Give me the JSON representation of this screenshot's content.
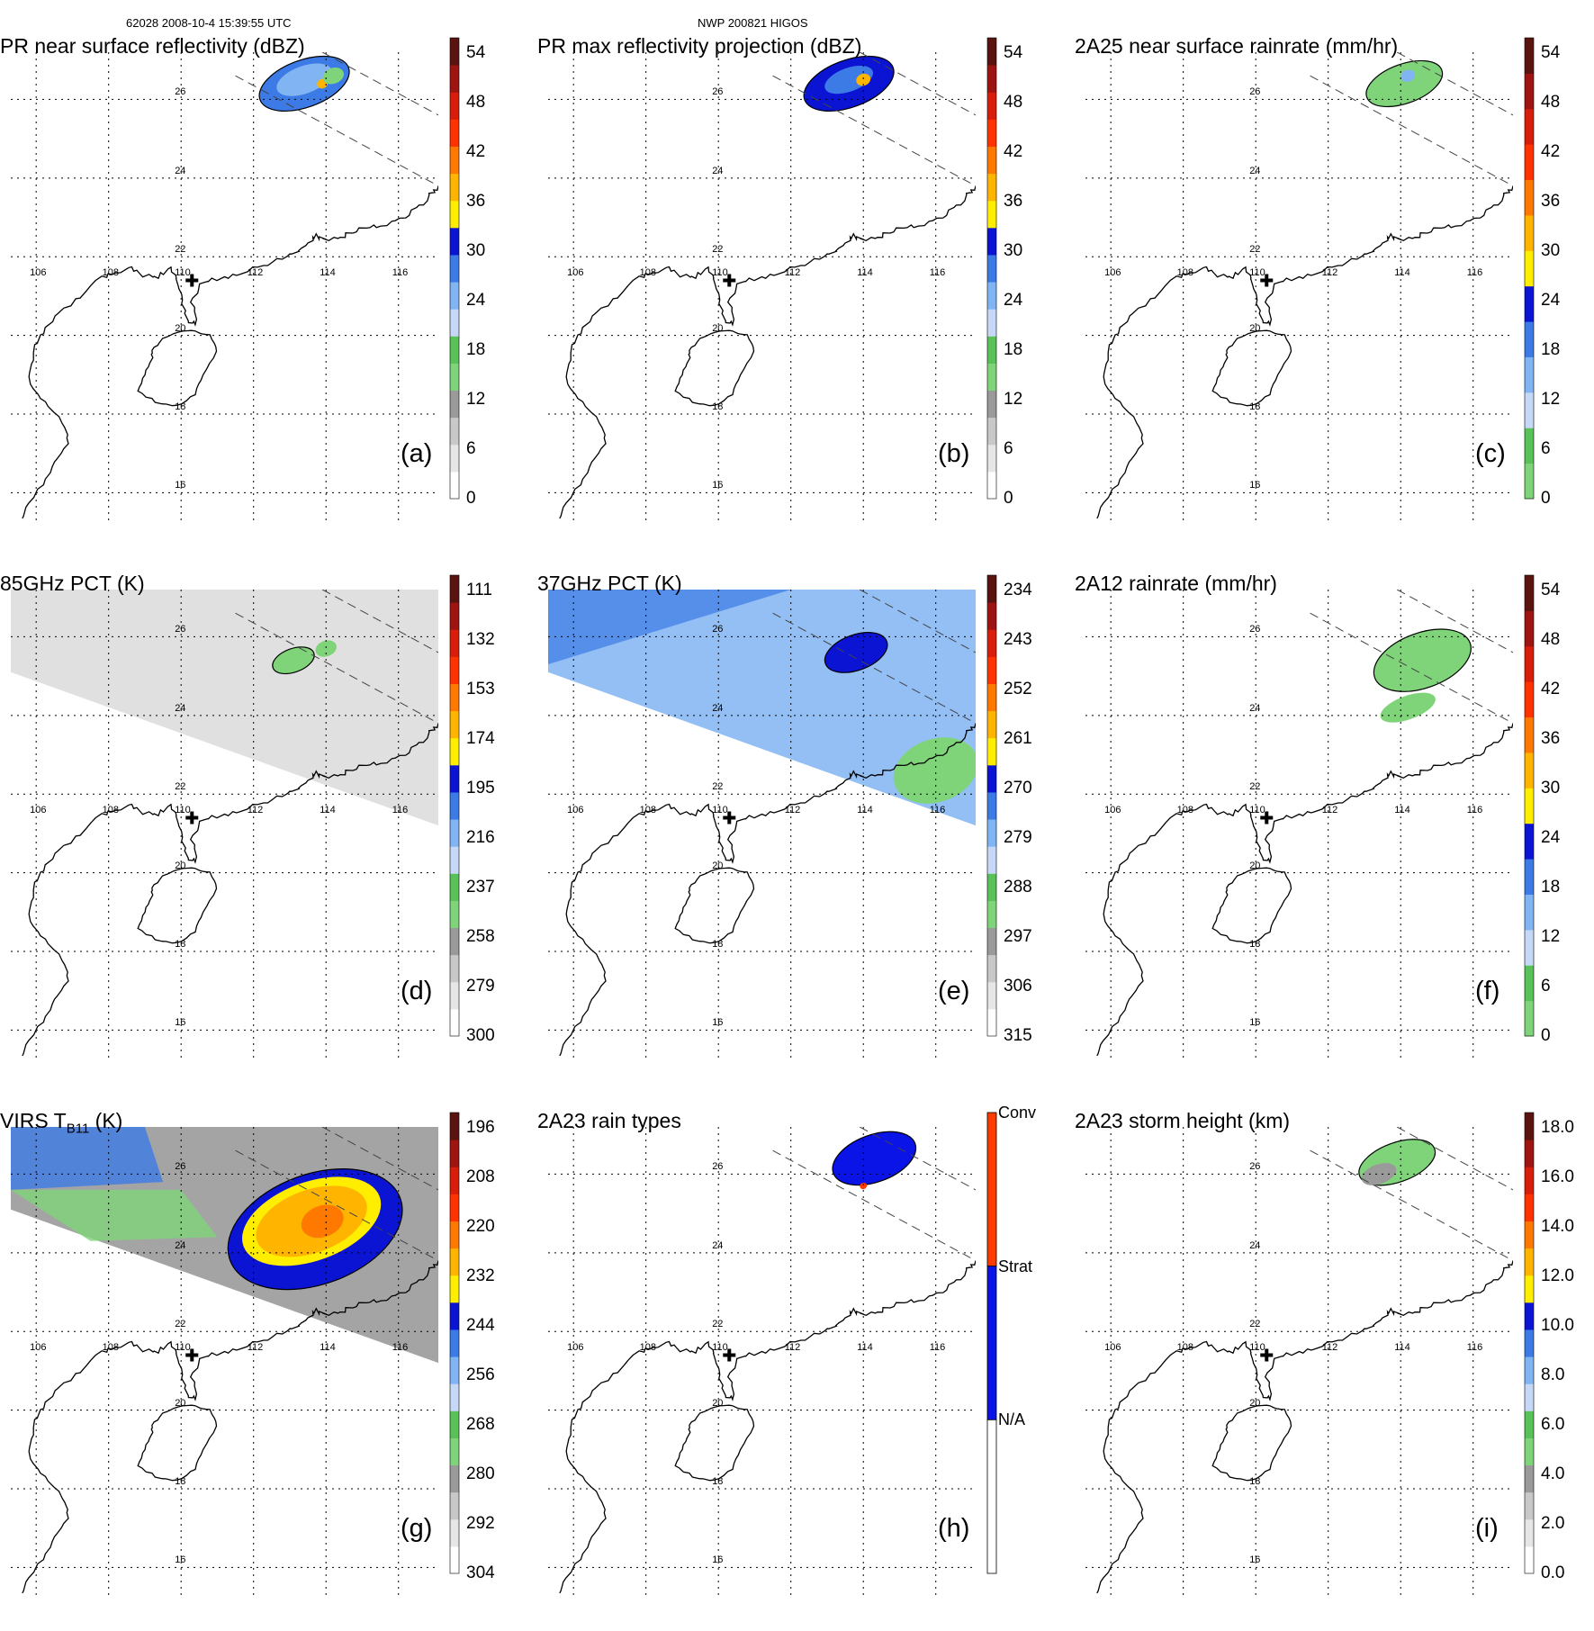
{
  "header": {
    "left": "62028 2008-10-4 15:39:55 UTC",
    "center": "NWP 200821 HIGOS"
  },
  "map": {
    "lon_ticks": [
      106,
      108,
      110,
      112,
      114,
      116
    ],
    "lat_ticks": [
      16,
      18,
      20,
      22,
      24,
      26
    ],
    "lon_range": [
      105.3,
      117.1
    ],
    "lat_range": [
      15.3,
      27.2
    ],
    "center_marker": {
      "lon": 110.3,
      "lat": 21.4
    }
  },
  "panels": [
    {
      "id": "a",
      "title": "PR near surface reflectivity (dBZ)",
      "label": "(a)",
      "colorbar_labels": [
        "54",
        "48",
        "42",
        "36",
        "30",
        "24",
        "18",
        "12",
        "6",
        "0"
      ],
      "colorbar_type": "dbz"
    },
    {
      "id": "b",
      "title": "PR max reflectivity projection (dBZ)",
      "label": "(b)",
      "colorbar_labels": [
        "54",
        "48",
        "42",
        "36",
        "30",
        "24",
        "18",
        "12",
        "6",
        "0"
      ],
      "colorbar_type": "dbz"
    },
    {
      "id": "c",
      "title": "2A25 near surface rainrate (mm/hr)",
      "label": "(c)",
      "colorbar_labels": [
        "54",
        "48",
        "42",
        "36",
        "30",
        "24",
        "18",
        "12",
        "6",
        "0"
      ],
      "colorbar_type": "rain"
    },
    {
      "id": "d",
      "title": "85GHz PCT (K)",
      "label": "(d)",
      "colorbar_labels": [
        "111",
        "132",
        "153",
        "174",
        "195",
        "216",
        "237",
        "258",
        "279",
        "300"
      ],
      "colorbar_type": "dbz"
    },
    {
      "id": "e",
      "title": "37GHz PCT (K)",
      "label": "(e)",
      "colorbar_labels": [
        "234",
        "243",
        "252",
        "261",
        "270",
        "279",
        "288",
        "297",
        "306",
        "315"
      ],
      "colorbar_type": "dbz"
    },
    {
      "id": "f",
      "title": "2A12 rainrate (mm/hr)",
      "label": "(f)",
      "colorbar_labels": [
        "54",
        "48",
        "42",
        "36",
        "30",
        "24",
        "18",
        "12",
        "6",
        "0"
      ],
      "colorbar_type": "rain"
    },
    {
      "id": "g",
      "title": "VIRS T",
      "title_sub": "B11",
      "title_suffix": " (K)",
      "label": "(g)",
      "colorbar_labels": [
        "196",
        "208",
        "220",
        "232",
        "244",
        "256",
        "268",
        "280",
        "292",
        "304"
      ],
      "colorbar_type": "dbz"
    },
    {
      "id": "h",
      "title": "2A23 rain types",
      "label": "(h)",
      "colorbar_labels": [
        "Conv",
        "Strat",
        "N/A"
      ],
      "colorbar_type": "types"
    },
    {
      "id": "i",
      "title": "2A23 storm height (km)",
      "label": "(i)",
      "colorbar_labels": [
        "18.0",
        "16.0",
        "14.0",
        "12.0",
        "10.0",
        "8.0",
        "6.0",
        "4.0",
        "2.0",
        "0.0"
      ],
      "colorbar_type": "dbz"
    }
  ],
  "colors": {
    "dbz_scale": [
      "#ffffff",
      "#e6e6e6",
      "#c8c8c8",
      "#9a9a9a",
      "#7fd47a",
      "#58c158",
      "#c6d8f6",
      "#80b4f2",
      "#3c7ae6",
      "#0a14d2",
      "#ffee00",
      "#ffb400",
      "#ff7800",
      "#ff3200",
      "#d81e0a",
      "#9e1410",
      "#5a1410"
    ],
    "rain_scale": [
      "#7fd47a",
      "#58c158",
      "#c6d8f6",
      "#80b4f2",
      "#3c7ae6",
      "#0a14d2",
      "#ffee00",
      "#ffb400",
      "#ff7800",
      "#ff3200",
      "#d81e0a",
      "#9e1410",
      "#5a1410"
    ],
    "types": {
      "conv": "#ff3c00",
      "strat": "#0a14e6",
      "na": "#ffffff"
    }
  }
}
